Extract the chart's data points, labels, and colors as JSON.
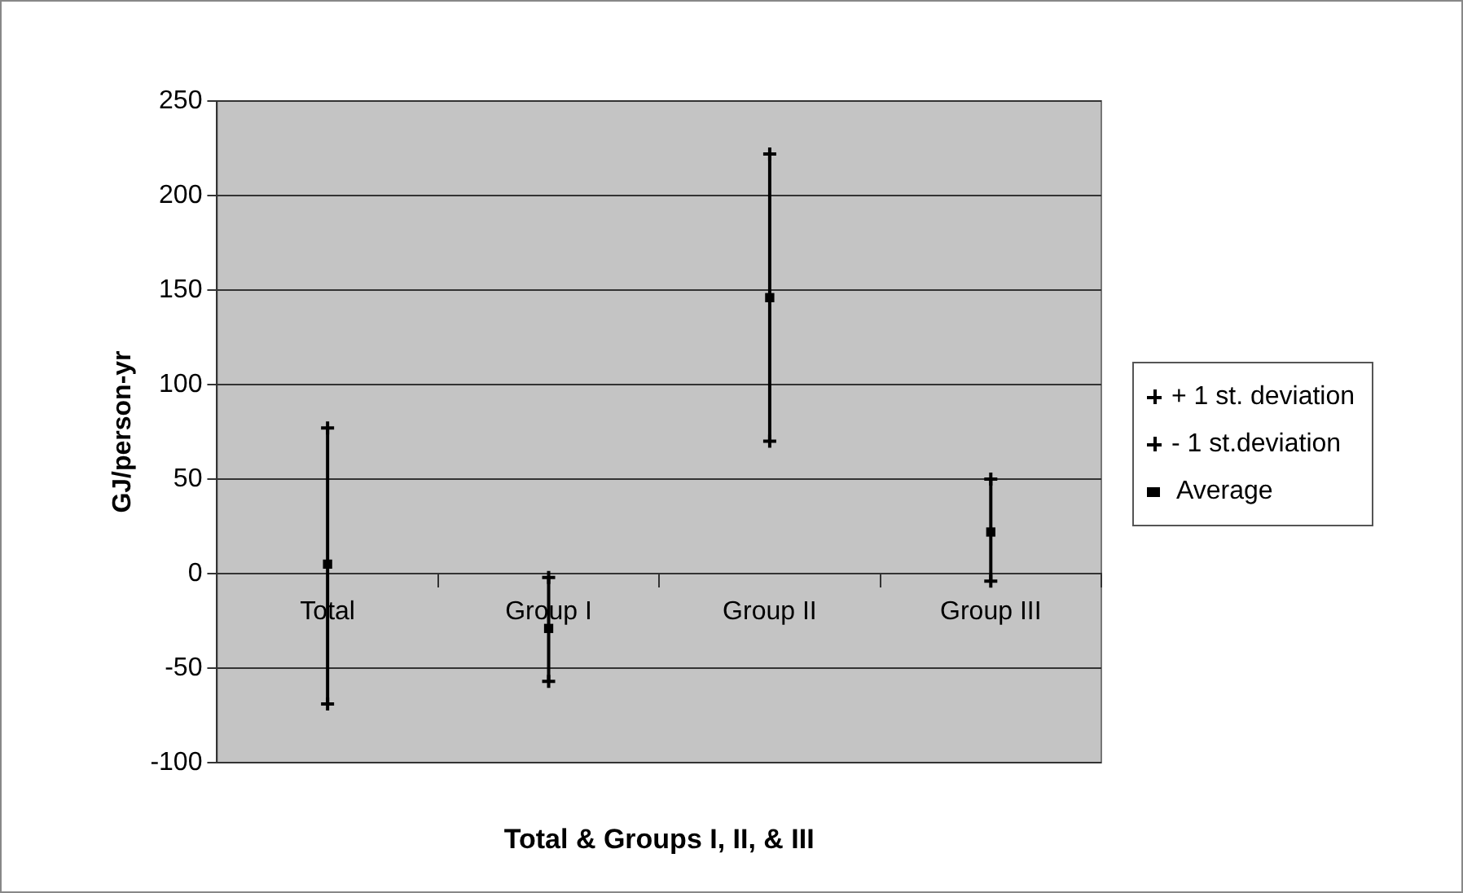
{
  "chart_data": {
    "type": "scatter",
    "xlabel": "Total & Groups I, II, & III",
    "ylabel": "GJ/person-yr",
    "categories": [
      "Total",
      "Group I",
      "Group II",
      "Group III"
    ],
    "series": [
      {
        "name": "+ 1 st. deviation",
        "color": "#000000",
        "marker": "cross",
        "values": [
          77,
          -2,
          222,
          50
        ]
      },
      {
        "name": "- 1 st.deviation",
        "color": "#000000",
        "marker": "cross",
        "values": [
          -69,
          -57,
          70,
          -4
        ]
      },
      {
        "name": "Average",
        "color": "#000000",
        "marker": "square",
        "values": [
          5,
          -29,
          146,
          22
        ]
      }
    ],
    "ylim": [
      -100,
      250
    ],
    "yticks": [
      -100,
      -50,
      0,
      50,
      100,
      150,
      200,
      250
    ],
    "grid": "y",
    "legend": "right"
  }
}
